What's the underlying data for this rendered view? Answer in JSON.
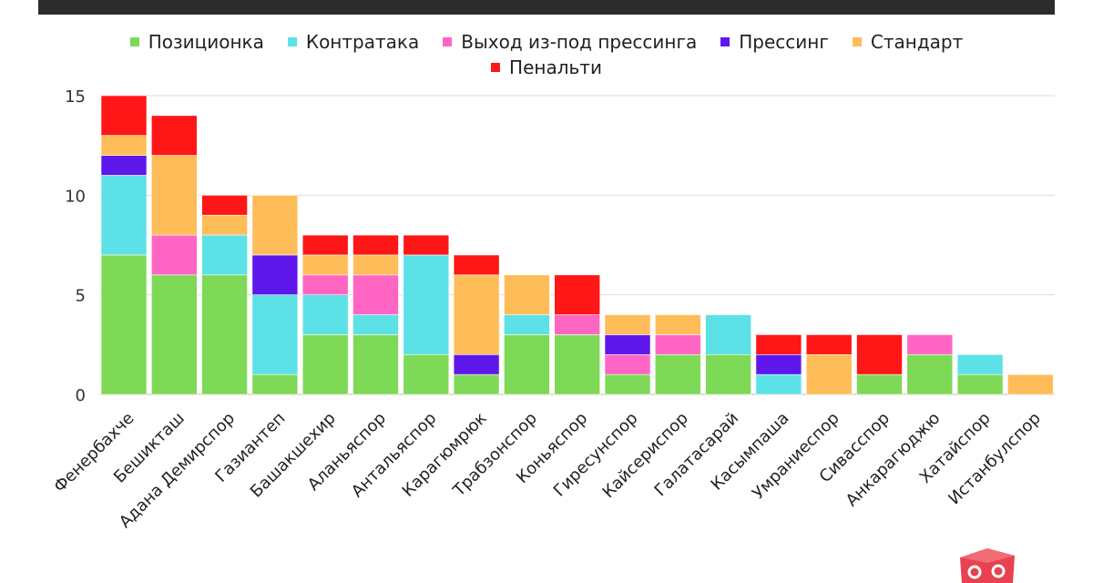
{
  "colors": {
    "Позиционка": "#7ed957",
    "Контратака": "#5ce1e6",
    "Выход из-под прессинга": "#ff66c4",
    "Прессинг": "#5e17eb",
    "Стандарт": "#ffbd59",
    "Пенальти": "#ff1616"
  },
  "chart_data": {
    "type": "bar",
    "stacked": true,
    "categories": [
      "Фенербахче",
      "Бешикташ",
      "Адана Демирспор",
      "Газиантеп",
      "Башакшехир",
      "Аланьяспор",
      "Антальяспор",
      "Карагюмрюк",
      "Трабзонспор",
      "Коньяспор",
      "Гиресунспор",
      "Кайсериспор",
      "Галатасарай",
      "Касымпаша",
      "Умраниеспор",
      "Сивасспор",
      "Анкарагюджю",
      "Хатайспор",
      "Истанбулспор"
    ],
    "series": [
      {
        "name": "Позиционка",
        "values": [
          7,
          6,
          6,
          1,
          3,
          3,
          2,
          1,
          3,
          3,
          1,
          2,
          2,
          0,
          0,
          1,
          2,
          1,
          0
        ]
      },
      {
        "name": "Контратака",
        "values": [
          4,
          0,
          2,
          4,
          2,
          1,
          5,
          0,
          1,
          0,
          0,
          0,
          2,
          1,
          0,
          0,
          0,
          1,
          0
        ]
      },
      {
        "name": "Выход из-под прессинга",
        "values": [
          0,
          2,
          0,
          0,
          1,
          2,
          0,
          0,
          0,
          1,
          1,
          1,
          0,
          0,
          0,
          0,
          1,
          0,
          0
        ]
      },
      {
        "name": "Прессинг",
        "values": [
          1,
          0,
          0,
          2,
          0,
          0,
          0,
          1,
          0,
          0,
          1,
          0,
          0,
          1,
          0,
          0,
          0,
          0,
          0
        ]
      },
      {
        "name": "Стандарт",
        "values": [
          1,
          4,
          1,
          3,
          1,
          1,
          0,
          4,
          2,
          0,
          1,
          1,
          0,
          0,
          2,
          0,
          0,
          0,
          1
        ]
      },
      {
        "name": "Пенальти",
        "values": [
          2,
          2,
          1,
          0,
          1,
          1,
          1,
          1,
          0,
          2,
          0,
          0,
          0,
          1,
          1,
          2,
          0,
          0,
          0
        ]
      }
    ],
    "ylim": [
      0,
      15
    ],
    "yticks": [
      0,
      5,
      10,
      15
    ],
    "grid": true,
    "legend_position": "top"
  }
}
